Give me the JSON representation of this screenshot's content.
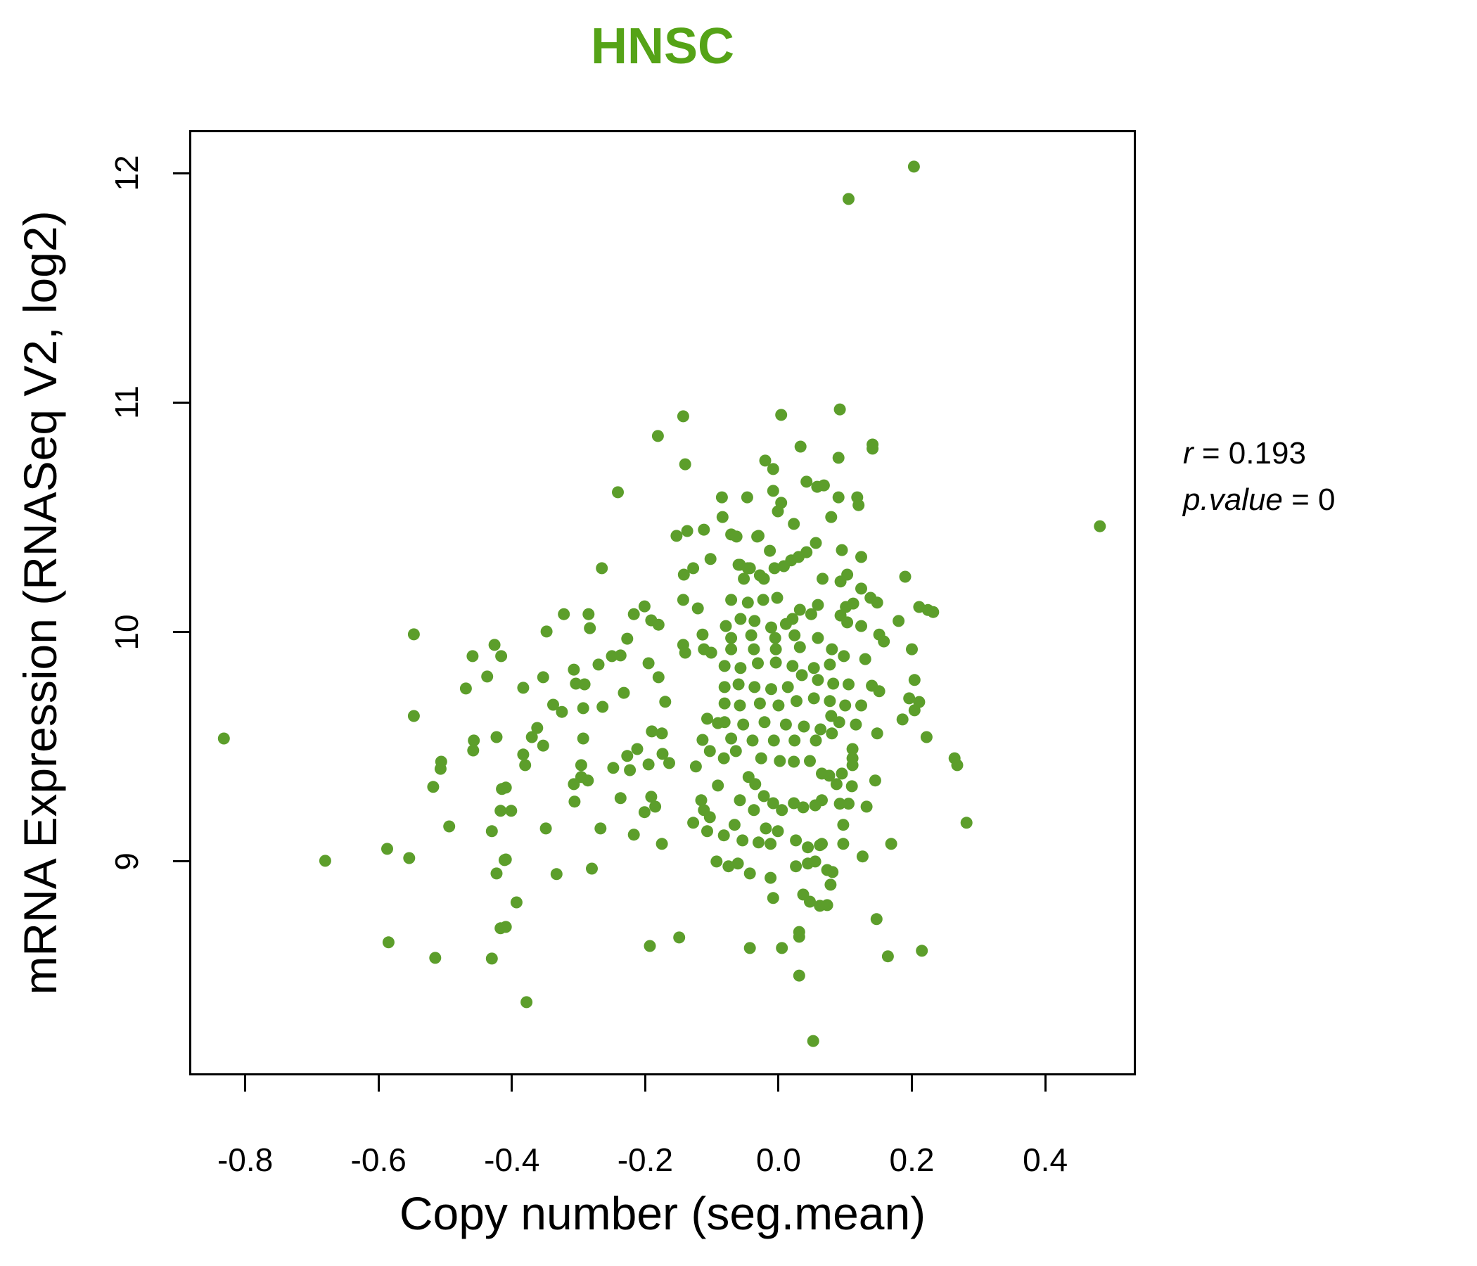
{
  "figure": {
    "title": "HNSC",
    "title_color": "#55A317",
    "annotation": {
      "r_var": "r",
      "r_rest": " = 0.193",
      "p_var": "p.value",
      "p_rest": " = 0"
    },
    "x_axis": {
      "label": "Copy number (seg.mean)",
      "tick_labels": [
        "-0.8",
        "-0.6",
        "-0.4",
        "-0.2",
        "0.0",
        "0.2",
        "0.4"
      ]
    },
    "y_axis": {
      "label": "mRNA Expression (RNASeq V2, log2)",
      "tick_labels": [
        "9",
        "10",
        "11",
        "12"
      ]
    }
  },
  "chart_data": {
    "type": "scatter",
    "title": "HNSC",
    "xlabel": "Copy number (seg.mean)",
    "ylabel": "mRNA Expression (RNASeq V2, log2)",
    "xlim": [
      -0.884,
      0.536
    ],
    "ylim": [
      8.068,
      12.187
    ],
    "x_ticks": [
      -0.8,
      -0.6,
      -0.4,
      -0.2,
      0.0,
      0.2,
      0.4
    ],
    "y_ticks": [
      9,
      10,
      11,
      12
    ],
    "grid": false,
    "legend": false,
    "point_color": "#5C9E2B",
    "point_radius_px": 8.5,
    "annotations": [
      "r = 0.193",
      "p.value = 0"
    ],
    "points": [
      [
        0.203,
        12.028
      ],
      [
        0.105,
        11.887
      ],
      [
        -0.143,
        10.94
      ],
      [
        -0.181,
        10.854
      ],
      [
        0.004,
        10.946
      ],
      [
        0.092,
        10.97
      ],
      [
        0.141,
        10.817
      ],
      [
        0.033,
        10.808
      ],
      [
        0.09,
        10.759
      ],
      [
        0.141,
        10.799
      ],
      [
        -0.14,
        10.731
      ],
      [
        -0.02,
        10.747
      ],
      [
        -0.008,
        10.71
      ],
      [
        0.068,
        10.639
      ],
      [
        -0.241,
        10.609
      ],
      [
        -0.085,
        10.587
      ],
      [
        -0.047,
        10.587
      ],
      [
        -0.008,
        10.615
      ],
      [
        0.004,
        10.563
      ],
      [
        -0.001,
        10.526
      ],
      [
        0.042,
        10.655
      ],
      [
        0.058,
        10.633
      ],
      [
        0.09,
        10.587
      ],
      [
        0.118,
        10.587
      ],
      [
        0.12,
        10.553
      ],
      [
        -0.084,
        10.501
      ],
      [
        0.023,
        10.471
      ],
      [
        0.079,
        10.501
      ],
      [
        -0.153,
        10.419
      ],
      [
        -0.137,
        10.44
      ],
      [
        -0.112,
        10.446
      ],
      [
        -0.071,
        10.425
      ],
      [
        -0.03,
        10.419
      ],
      [
        0.482,
        10.461
      ],
      [
        -0.102,
        10.318
      ],
      [
        -0.265,
        10.278
      ],
      [
        -0.142,
        10.25
      ],
      [
        -0.128,
        10.278
      ],
      [
        -0.058,
        10.293
      ],
      [
        -0.043,
        10.278
      ],
      [
        -0.022,
        10.232
      ],
      [
        -0.006,
        10.278
      ],
      [
        -0.063,
        10.416
      ],
      [
        -0.032,
        10.416
      ],
      [
        -0.013,
        10.354
      ],
      [
        0.056,
        10.388
      ],
      [
        0.095,
        10.357
      ],
      [
        0.042,
        10.348
      ],
      [
        0.124,
        10.327
      ],
      [
        -0.06,
        10.293
      ],
      [
        -0.046,
        10.278
      ],
      [
        -0.052,
        10.232
      ],
      [
        -0.028,
        10.247
      ],
      [
        0.008,
        10.287
      ],
      [
        0.019,
        10.312
      ],
      [
        0.03,
        10.327
      ],
      [
        0.066,
        10.232
      ],
      [
        0.093,
        10.22
      ],
      [
        0.103,
        10.25
      ],
      [
        0.124,
        10.189
      ],
      [
        0.138,
        10.149
      ],
      [
        0.148,
        10.128
      ],
      [
        0.19,
        10.241
      ],
      [
        -0.071,
        10.14
      ],
      [
        -0.046,
        10.128
      ],
      [
        -0.023,
        10.14
      ],
      [
        -0.002,
        10.149
      ],
      [
        0.032,
        10.097
      ],
      [
        0.049,
        10.078
      ],
      [
        0.059,
        10.118
      ],
      [
        0.101,
        10.109
      ],
      [
        0.112,
        10.124
      ],
      [
        0.211,
        10.109
      ],
      [
        0.18,
        10.048
      ],
      [
        -0.079,
        10.026
      ],
      [
        -0.057,
        10.057
      ],
      [
        -0.036,
        10.048
      ],
      [
        -0.011,
        10.02
      ],
      [
        0.011,
        10.035
      ],
      [
        0.021,
        10.057
      ],
      [
        0.059,
        9.974
      ],
      [
        0.08,
        9.925
      ],
      [
        0.093,
        10.072
      ],
      [
        0.103,
        10.042
      ],
      [
        0.124,
        10.026
      ],
      [
        0.151,
        9.989
      ],
      [
        0.158,
        9.959
      ],
      [
        0.2,
        9.925
      ],
      [
        -0.071,
        9.974
      ],
      [
        -0.071,
        9.925
      ],
      [
        -0.041,
        9.986
      ],
      [
        -0.037,
        9.925
      ],
      [
        -0.005,
        9.974
      ],
      [
        -0.004,
        9.925
      ],
      [
        0.024,
        9.986
      ],
      [
        0.032,
        9.934
      ],
      [
        0.13,
        9.882
      ],
      [
        0.098,
        9.895
      ],
      [
        0.077,
        9.858
      ],
      [
        0.053,
        9.843
      ],
      [
        -0.081,
        9.852
      ],
      [
        -0.057,
        9.843
      ],
      [
        -0.031,
        9.864
      ],
      [
        -0.004,
        9.867
      ],
      [
        0.021,
        9.852
      ],
      [
        0.035,
        9.812
      ],
      [
        0.059,
        9.791
      ],
      [
        0.082,
        9.775
      ],
      [
        0.105,
        9.772
      ],
      [
        0.14,
        9.766
      ],
      [
        0.151,
        9.742
      ],
      [
        0.204,
        9.791
      ],
      [
        0.196,
        9.711
      ],
      [
        -0.081,
        9.76
      ],
      [
        -0.06,
        9.772
      ],
      [
        -0.036,
        9.76
      ],
      [
        -0.011,
        9.751
      ],
      [
        0.014,
        9.76
      ],
      [
        -0.081,
        9.689
      ],
      [
        -0.058,
        9.68
      ],
      [
        -0.028,
        9.689
      ],
      [
        0.0,
        9.68
      ],
      [
        0.027,
        9.699
      ],
      [
        0.053,
        9.711
      ],
      [
        0.077,
        9.699
      ],
      [
        0.1,
        9.68
      ],
      [
        0.124,
        9.68
      ],
      [
        0.186,
        9.619
      ],
      [
        0.204,
        9.659
      ],
      [
        -0.081,
        9.607
      ],
      [
        -0.053,
        9.597
      ],
      [
        -0.021,
        9.607
      ],
      [
        0.011,
        9.597
      ],
      [
        0.038,
        9.588
      ],
      [
        0.063,
        9.576
      ],
      [
        0.091,
        9.607
      ],
      [
        0.116,
        9.597
      ],
      [
        0.148,
        9.558
      ],
      [
        -0.071,
        9.536
      ],
      [
        -0.039,
        9.527
      ],
      [
        -0.007,
        9.527
      ],
      [
        0.024,
        9.527
      ],
      [
        0.056,
        9.527
      ],
      [
        0.08,
        9.558
      ],
      [
        -0.143,
        10.14
      ],
      [
        -0.121,
        10.103
      ],
      [
        -0.201,
        10.112
      ],
      [
        -0.191,
        10.051
      ],
      [
        -0.217,
        10.078
      ],
      [
        -0.18,
        10.032
      ],
      [
        -0.322,
        10.078
      ],
      [
        -0.285,
        10.078
      ],
      [
        -0.283,
        10.017
      ],
      [
        -0.348,
        10.002
      ],
      [
        -0.227,
        9.971
      ],
      [
        -0.114,
        9.989
      ],
      [
        0.224,
        10.096
      ],
      [
        0.232,
        10.087
      ],
      [
        -0.143,
        9.944
      ],
      [
        -0.14,
        9.91
      ],
      [
        -0.112,
        9.925
      ],
      [
        -0.101,
        9.91
      ],
      [
        -0.25,
        9.895
      ],
      [
        -0.237,
        9.898
      ],
      [
        -0.27,
        9.858
      ],
      [
        -0.195,
        9.864
      ],
      [
        -0.18,
        9.803
      ],
      [
        -0.307,
        9.836
      ],
      [
        -0.304,
        9.775
      ],
      [
        -0.291,
        9.772
      ],
      [
        -0.353,
        9.803
      ],
      [
        -0.383,
        9.757
      ],
      [
        -0.547,
        9.99
      ],
      [
        -0.426,
        9.944
      ],
      [
        -0.459,
        9.895
      ],
      [
        -0.416,
        9.895
      ],
      [
        -0.437,
        9.806
      ],
      [
        -0.469,
        9.754
      ],
      [
        -0.547,
        9.634
      ],
      [
        -0.457,
        9.527
      ],
      [
        -0.423,
        9.542
      ],
      [
        -0.458,
        9.484
      ],
      [
        -0.832,
        9.536
      ],
      [
        -0.506,
        9.435
      ],
      [
        0.211,
        9.695
      ],
      [
        0.079,
        9.634
      ],
      [
        0.222,
        9.542
      ],
      [
        0.111,
        9.49
      ],
      [
        0.111,
        9.45
      ],
      [
        0.264,
        9.45
      ],
      [
        -0.362,
        9.582
      ],
      [
        -0.37,
        9.542
      ],
      [
        -0.353,
        9.505
      ],
      [
        -0.383,
        9.466
      ],
      [
        -0.338,
        9.683
      ],
      [
        -0.325,
        9.652
      ],
      [
        -0.293,
        9.668
      ],
      [
        -0.264,
        9.674
      ],
      [
        -0.293,
        9.536
      ],
      [
        -0.232,
        9.735
      ],
      [
        -0.227,
        9.46
      ],
      [
        -0.212,
        9.49
      ],
      [
        -0.19,
        9.567
      ],
      [
        -0.175,
        9.558
      ],
      [
        -0.17,
        9.696
      ],
      [
        -0.174,
        9.469
      ],
      [
        -0.107,
        9.622
      ],
      [
        -0.091,
        9.603
      ],
      [
        -0.114,
        9.53
      ],
      [
        -0.103,
        9.481
      ],
      [
        -0.082,
        9.45
      ],
      [
        -0.064,
        9.481
      ],
      [
        -0.026,
        9.45
      ],
      [
        0.002,
        9.438
      ],
      [
        0.023,
        9.435
      ],
      [
        0.047,
        9.438
      ],
      [
        -0.38,
        9.42
      ],
      [
        -0.296,
        9.42
      ],
      [
        -0.248,
        9.408
      ],
      [
        -0.223,
        9.398
      ],
      [
        -0.195,
        9.423
      ],
      [
        -0.164,
        9.429
      ],
      [
        -0.124,
        9.414
      ],
      [
        -0.307,
        9.337
      ],
      [
        -0.296,
        9.368
      ],
      [
        -0.286,
        9.353
      ],
      [
        -0.306,
        9.261
      ],
      [
        -0.237,
        9.276
      ],
      [
        -0.191,
        9.282
      ],
      [
        -0.185,
        9.239
      ],
      [
        -0.201,
        9.215
      ],
      [
        -0.409,
        9.322
      ],
      [
        -0.401,
        9.221
      ],
      [
        -0.349,
        9.144
      ],
      [
        -0.267,
        9.144
      ],
      [
        -0.217,
        9.117
      ],
      [
        -0.175,
        9.077
      ],
      [
        -0.116,
        9.267
      ],
      [
        -0.112,
        9.224
      ],
      [
        -0.103,
        9.193
      ],
      [
        -0.091,
        9.331
      ],
      [
        -0.128,
        9.169
      ],
      [
        -0.107,
        9.132
      ],
      [
        -0.082,
        9.114
      ],
      [
        -0.066,
        9.16
      ],
      [
        -0.058,
        9.267
      ],
      [
        -0.045,
        9.368
      ],
      [
        -0.035,
        9.337
      ],
      [
        -0.022,
        9.285
      ],
      [
        -0.008,
        9.254
      ],
      [
        0.005,
        9.224
      ],
      [
        0.023,
        9.254
      ],
      [
        0.037,
        9.236
      ],
      [
        0.055,
        9.245
      ],
      [
        -0.037,
        9.224
      ],
      [
        -0.019,
        9.144
      ],
      [
        -0.001,
        9.132
      ],
      [
        -0.054,
        9.092
      ],
      [
        -0.03,
        9.083
      ],
      [
        -0.012,
        9.077
      ],
      [
        0.026,
        9.092
      ],
      [
        0.044,
        9.062
      ],
      [
        0.062,
        9.071
      ],
      [
        -0.093,
        9.0
      ],
      [
        -0.075,
        8.979
      ],
      [
        -0.061,
        8.991
      ],
      [
        -0.043,
        8.948
      ],
      [
        -0.012,
        8.929
      ],
      [
        0.026,
        8.979
      ],
      [
        0.044,
        8.991
      ],
      [
        0.055,
        9.0
      ],
      [
        -0.333,
        8.945
      ],
      [
        -0.28,
        8.969
      ],
      [
        -0.409,
        9.009
      ],
      [
        -0.393,
        8.822
      ],
      [
        -0.409,
        8.715
      ],
      [
        -0.008,
        8.841
      ],
      [
        0.037,
        8.856
      ],
      [
        0.047,
        8.825
      ],
      [
        0.062,
        8.807
      ],
      [
        0.031,
        8.693
      ],
      [
        -0.193,
        8.632
      ],
      [
        -0.149,
        8.669
      ],
      [
        -0.043,
        8.623
      ],
      [
        0.005,
        8.623
      ],
      [
        0.031,
        8.672
      ],
      [
        0.031,
        8.503
      ],
      [
        -0.378,
        8.387
      ],
      [
        0.052,
        8.218
      ],
      [
        -0.507,
        9.404
      ],
      [
        -0.518,
        9.325
      ],
      [
        -0.415,
        9.316
      ],
      [
        -0.417,
        9.221
      ],
      [
        -0.494,
        9.153
      ],
      [
        -0.43,
        9.132
      ],
      [
        -0.587,
        9.055
      ],
      [
        -0.554,
        9.015
      ],
      [
        -0.68,
        9.003
      ],
      [
        -0.423,
        8.948
      ],
      [
        -0.411,
        9.006
      ],
      [
        -0.417,
        8.709
      ],
      [
        -0.585,
        8.648
      ],
      [
        -0.515,
        8.58
      ],
      [
        -0.43,
        8.577
      ],
      [
        0.111,
        9.42
      ],
      [
        0.268,
        9.42
      ],
      [
        0.065,
        9.383
      ],
      [
        0.076,
        9.374
      ],
      [
        0.095,
        9.383
      ],
      [
        0.087,
        9.337
      ],
      [
        0.11,
        9.328
      ],
      [
        0.145,
        9.353
      ],
      [
        0.065,
        9.267
      ],
      [
        0.092,
        9.252
      ],
      [
        0.105,
        9.252
      ],
      [
        0.132,
        9.239
      ],
      [
        0.097,
        9.16
      ],
      [
        0.282,
        9.169
      ],
      [
        0.065,
        9.077
      ],
      [
        0.097,
        9.077
      ],
      [
        0.169,
        9.077
      ],
      [
        0.126,
        9.022
      ],
      [
        0.073,
        8.963
      ],
      [
        0.081,
        8.954
      ],
      [
        0.078,
        8.899
      ],
      [
        0.073,
        8.81
      ],
      [
        0.147,
        8.749
      ],
      [
        0.164,
        8.587
      ],
      [
        0.215,
        8.611
      ]
    ]
  }
}
